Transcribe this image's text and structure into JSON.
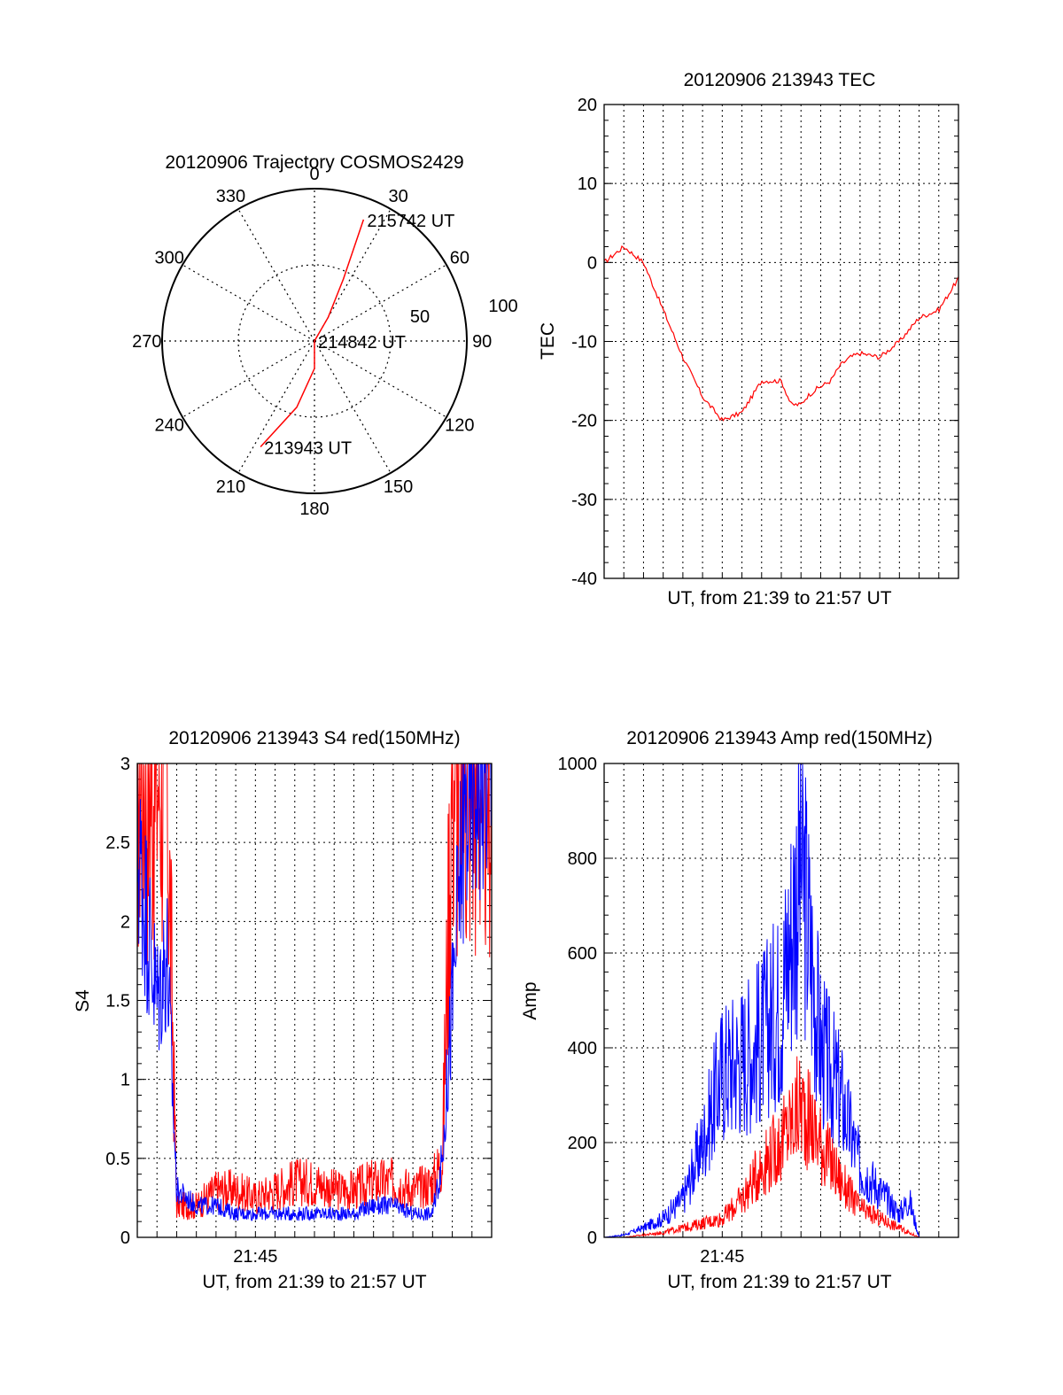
{
  "chart_data": [
    {
      "type": "polar",
      "title": "20120906 Trajectory COSMOS2429",
      "angle_labels": [
        "0",
        "30",
        "60",
        "90",
        "120",
        "150",
        "180",
        "210",
        "240",
        "270",
        "300",
        "330"
      ],
      "radius_labels": [
        "50",
        "100"
      ],
      "elevation_rings": [
        50,
        100
      ],
      "trajectory": [
        {
          "azimuth": 207,
          "radius": 78
        },
        {
          "azimuth": 195,
          "radius": 45
        },
        {
          "azimuth": 180,
          "radius": 18
        },
        {
          "azimuth": 90,
          "radius": 0
        },
        {
          "azimuth": 30,
          "radius": 18
        },
        {
          "azimuth": 25,
          "radius": 45
        },
        {
          "azimuth": 22,
          "radius": 86
        }
      ],
      "annotations": [
        {
          "text": "215742 UT",
          "azimuth": 22,
          "radius": 86
        },
        {
          "text": "214842 UT",
          "azimuth": 90,
          "radius": 0
        },
        {
          "text": "213943 UT",
          "azimuth": 207,
          "radius": 78
        }
      ],
      "colors": {
        "trajectory": "#ff0000",
        "grid": "#000000"
      }
    },
    {
      "type": "line",
      "title": "20120906 213943 TEC",
      "xlabel": "UT, from 21:39 to 21:57 UT",
      "ylabel": "TEC",
      "ylim": [
        -40,
        20
      ],
      "yticks": [
        "20",
        "10",
        "0",
        "-10",
        "-20",
        "-30",
        "-40"
      ],
      "x_range_min": [
        0,
        18
      ],
      "series": [
        {
          "color": "#ff0000",
          "x": [
            0,
            1,
            2,
            3,
            4,
            5,
            6,
            7,
            8,
            9,
            9.5,
            10,
            10.3,
            10.8,
            11.5,
            12,
            12.5,
            13,
            14,
            15,
            16,
            17,
            17.5,
            18
          ],
          "y": [
            0,
            2,
            0,
            -6,
            -12,
            -17,
            -20,
            -19,
            -15,
            -15,
            -18,
            -18,
            -17,
            -16,
            -15,
            -13,
            -12,
            -11.5,
            -12,
            -10,
            -7,
            -6,
            -4,
            -2
          ]
        }
      ]
    },
    {
      "type": "line",
      "title": "20120906 213943 S4 red(150MHz)",
      "xlabel": "UT, from 21:39 to 21:57 UT",
      "ylabel": "S4",
      "ylim": [
        0,
        3
      ],
      "yticks": [
        "3",
        "2.5",
        "2",
        "1.5",
        "1",
        "0.5",
        "0"
      ],
      "xticks": [
        "21:45"
      ],
      "x_range_min": [
        0,
        18
      ],
      "series": [
        {
          "color": "#ff0000",
          "x": [
            0,
            1,
            1.5,
            2,
            3,
            4,
            5,
            6,
            7,
            8,
            9,
            10,
            11,
            12,
            13,
            14,
            15,
            15.5,
            16,
            16.5,
            17,
            18
          ],
          "y": [
            3,
            3,
            3,
            0.2,
            0.2,
            0.3,
            0.3,
            0.25,
            0.3,
            0.35,
            0.35,
            0.3,
            0.3,
            0.35,
            0.35,
            0.3,
            0.35,
            0.5,
            3,
            3,
            3,
            3
          ]
        },
        {
          "color": "#0000ff",
          "x": [
            0,
            0.5,
            1,
            1.5,
            2,
            3,
            4,
            5,
            6,
            7,
            8,
            9,
            10,
            11,
            12,
            13,
            14,
            15,
            15.5,
            16,
            16.5,
            17,
            18
          ],
          "y": [
            2.5,
            2.0,
            1.5,
            1.8,
            0.3,
            0.2,
            0.2,
            0.15,
            0.15,
            0.15,
            0.15,
            0.15,
            0.15,
            0.15,
            0.2,
            0.2,
            0.15,
            0.15,
            0.5,
            1.5,
            2.5,
            3,
            3
          ]
        }
      ]
    },
    {
      "type": "line",
      "title": "20120906 213943 Amp red(150MHz)",
      "xlabel": "UT, from 21:39 to 21:57 UT",
      "ylabel": "Amp",
      "ylim": [
        0,
        1000
      ],
      "yticks": [
        "1000",
        "800",
        "600",
        "400",
        "200",
        "0"
      ],
      "xticks": [
        "21:45"
      ],
      "x_range_min": [
        0,
        18
      ],
      "series": [
        {
          "color": "#0000ff",
          "x": [
            0,
            1,
            2,
            3,
            4,
            5,
            6,
            7,
            8,
            9,
            10,
            11,
            12,
            13,
            14,
            15,
            15.5,
            16,
            17,
            18
          ],
          "y": [
            0,
            5,
            20,
            40,
            80,
            200,
            350,
            380,
            420,
            500,
            800,
            400,
            300,
            150,
            100,
            50,
            80,
            0,
            0,
            0
          ]
        },
        {
          "color": "#ff0000",
          "x": [
            0,
            1,
            2,
            3,
            4,
            5,
            6,
            7,
            8,
            9,
            10,
            11,
            12,
            13,
            14,
            15,
            15.5,
            16,
            17,
            18
          ],
          "y": [
            0,
            0,
            5,
            10,
            20,
            30,
            40,
            80,
            150,
            200,
            280,
            200,
            120,
            60,
            40,
            20,
            10,
            0,
            0,
            0
          ]
        }
      ]
    }
  ]
}
